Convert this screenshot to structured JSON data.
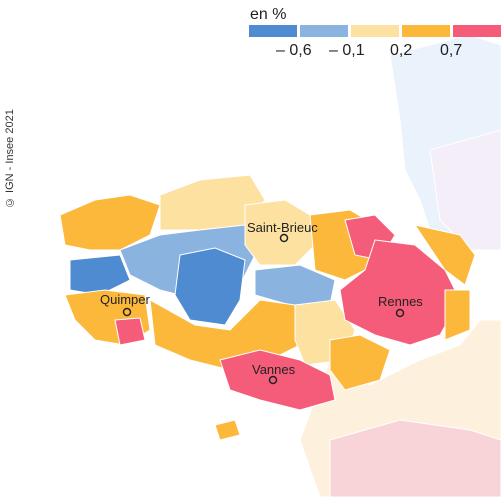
{
  "credit": "© IGN - Insee 2021",
  "legend": {
    "title": "en %",
    "classes": [
      {
        "color": "#4f8bd1"
      },
      {
        "color": "#8ab3df"
      },
      {
        "color": "#fde1a0"
      },
      {
        "color": "#fbb83a"
      },
      {
        "color": "#f55c7a"
      }
    ],
    "ticks": [
      "– 0,6",
      "– 0,1",
      "0,2",
      "0,7"
    ]
  },
  "cities": [
    {
      "name": "Saint-Brieuc"
    },
    {
      "name": "Quimper"
    },
    {
      "name": "Rennes"
    },
    {
      "name": "Vannes"
    }
  ]
}
